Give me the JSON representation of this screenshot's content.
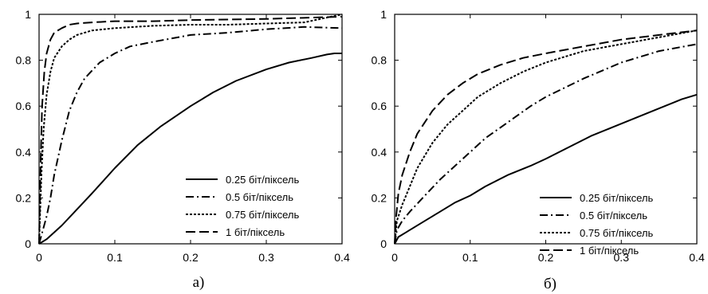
{
  "chart_data": [
    {
      "type": "line",
      "caption": "а)",
      "xlim": [
        0,
        0.4
      ],
      "ylim": [
        0,
        1
      ],
      "xticks": [
        "0",
        "0.1",
        "0.2",
        "0.3",
        "0.4"
      ],
      "yticks": [
        "0",
        "0.2",
        "0.4",
        "0.6",
        "0.8",
        "1"
      ],
      "grid": false,
      "legend_position": "bottom-right",
      "series": [
        {
          "name": "0.25 біт/піксель",
          "dash": "solid",
          "x": [
            0,
            0.005,
            0.01,
            0.02,
            0.03,
            0.05,
            0.07,
            0.1,
            0.13,
            0.16,
            0.2,
            0.23,
            0.26,
            0.3,
            0.33,
            0.36,
            0.38,
            0.39,
            0.4
          ],
          "y": [
            0,
            0.01,
            0.02,
            0.05,
            0.08,
            0.15,
            0.22,
            0.33,
            0.43,
            0.51,
            0.6,
            0.66,
            0.71,
            0.76,
            0.79,
            0.81,
            0.825,
            0.83,
            0.83
          ]
        },
        {
          "name": "0.5 біт/піксель",
          "dash": "dashdot",
          "x": [
            0,
            0.005,
            0.01,
            0.015,
            0.02,
            0.03,
            0.04,
            0.05,
            0.06,
            0.08,
            0.1,
            0.12,
            0.15,
            0.2,
            0.25,
            0.3,
            0.35,
            0.4
          ],
          "y": [
            0,
            0.06,
            0.12,
            0.2,
            0.3,
            0.45,
            0.58,
            0.66,
            0.72,
            0.79,
            0.83,
            0.86,
            0.88,
            0.91,
            0.92,
            0.935,
            0.945,
            0.94
          ]
        },
        {
          "name": "0.75 біт/піксель",
          "dash": "dotted",
          "x": [
            0,
            0.003,
            0.006,
            0.01,
            0.015,
            0.02,
            0.03,
            0.04,
            0.05,
            0.07,
            0.1,
            0.15,
            0.2,
            0.25,
            0.3,
            0.35,
            0.4
          ],
          "y": [
            0,
            0.3,
            0.5,
            0.65,
            0.75,
            0.81,
            0.86,
            0.89,
            0.91,
            0.93,
            0.94,
            0.95,
            0.955,
            0.955,
            0.96,
            0.965,
            1.0
          ]
        },
        {
          "name": "1 біт/піксель",
          "dash": "dashed",
          "x": [
            0,
            0.002,
            0.004,
            0.007,
            0.01,
            0.015,
            0.02,
            0.03,
            0.04,
            0.05,
            0.07,
            0.1,
            0.15,
            0.2,
            0.3,
            0.4
          ],
          "y": [
            0,
            0.35,
            0.6,
            0.75,
            0.83,
            0.89,
            0.92,
            0.94,
            0.955,
            0.96,
            0.965,
            0.97,
            0.97,
            0.975,
            0.98,
            0.99
          ]
        }
      ]
    },
    {
      "type": "line",
      "caption": "б)",
      "xlim": [
        0,
        0.4
      ],
      "ylim": [
        0,
        1
      ],
      "xticks": [
        "0",
        "0.1",
        "0.2",
        "0.3",
        "0.4"
      ],
      "yticks": [
        "0",
        "0.2",
        "0.4",
        "0.6",
        "0.8",
        "1"
      ],
      "grid": false,
      "legend_position": "bottom-right",
      "series": [
        {
          "name": "0.25 біт/піксель",
          "dash": "solid",
          "x": [
            0,
            0.005,
            0.01,
            0.02,
            0.04,
            0.06,
            0.08,
            0.1,
            0.12,
            0.15,
            0.18,
            0.2,
            0.23,
            0.26,
            0.29,
            0.32,
            0.35,
            0.38,
            0.4
          ],
          "y": [
            0,
            0.03,
            0.04,
            0.06,
            0.1,
            0.14,
            0.18,
            0.21,
            0.25,
            0.3,
            0.34,
            0.37,
            0.42,
            0.47,
            0.51,
            0.55,
            0.59,
            0.63,
            0.65
          ]
        },
        {
          "name": "0.5 біт/піксель",
          "dash": "dashdot",
          "x": [
            0,
            0.003,
            0.01,
            0.02,
            0.04,
            0.06,
            0.08,
            0.1,
            0.12,
            0.15,
            0.18,
            0.2,
            0.25,
            0.3,
            0.35,
            0.4
          ],
          "y": [
            0,
            0.06,
            0.1,
            0.14,
            0.21,
            0.28,
            0.34,
            0.4,
            0.46,
            0.53,
            0.6,
            0.64,
            0.72,
            0.79,
            0.84,
            0.87
          ]
        },
        {
          "name": "0.75 біт/піксель",
          "dash": "dotted",
          "x": [
            0,
            0.003,
            0.01,
            0.02,
            0.03,
            0.05,
            0.07,
            0.09,
            0.11,
            0.14,
            0.17,
            0.2,
            0.25,
            0.3,
            0.35,
            0.4
          ],
          "y": [
            0,
            0.1,
            0.17,
            0.25,
            0.33,
            0.44,
            0.52,
            0.58,
            0.64,
            0.7,
            0.75,
            0.79,
            0.84,
            0.87,
            0.9,
            0.93
          ]
        },
        {
          "name": "1 біт/піксель",
          "dash": "dashed",
          "x": [
            0,
            0.002,
            0.005,
            0.01,
            0.02,
            0.03,
            0.05,
            0.07,
            0.09,
            0.11,
            0.14,
            0.17,
            0.2,
            0.25,
            0.3,
            0.35,
            0.4
          ],
          "y": [
            0,
            0.12,
            0.22,
            0.3,
            0.4,
            0.48,
            0.58,
            0.65,
            0.7,
            0.74,
            0.78,
            0.81,
            0.83,
            0.86,
            0.89,
            0.91,
            0.93
          ]
        }
      ]
    }
  ]
}
